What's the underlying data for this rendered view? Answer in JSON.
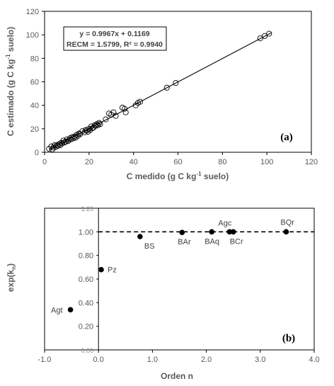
{
  "chart_data": [
    {
      "type": "scatter",
      "panel_label": "(a)",
      "xlabel": "C medido (g C kg-1 suelo)",
      "ylabel": "C estimado (g C kg-1 suelo)",
      "xlim": [
        0,
        120
      ],
      "ylim": [
        0,
        120
      ],
      "xticks": [
        "0",
        "20",
        "40",
        "60",
        "80",
        "100",
        "120"
      ],
      "yticks": [
        "0",
        "20",
        "40",
        "60",
        "80",
        "100",
        "120"
      ],
      "grid": false,
      "annotation": {
        "line1": "y = 0.9967x + 0.1169",
        "line2": "RECM = 1.5799, R² = 0.9940"
      },
      "regression": {
        "slope": 0.9967,
        "intercept": 0.1169
      },
      "points": [
        [
          2,
          3
        ],
        [
          3,
          5
        ],
        [
          3.5,
          2.5
        ],
        [
          4,
          4
        ],
        [
          4.5,
          6
        ],
        [
          5,
          4.5
        ],
        [
          5.5,
          6
        ],
        [
          6,
          5.5
        ],
        [
          6.5,
          7
        ],
        [
          7,
          6
        ],
        [
          7.5,
          8
        ],
        [
          8,
          7.5
        ],
        [
          8.5,
          10
        ],
        [
          9,
          8.5
        ],
        [
          9.5,
          9
        ],
        [
          10,
          11
        ],
        [
          10.5,
          9.5
        ],
        [
          11,
          10.5
        ],
        [
          11.5,
          12
        ],
        [
          12,
          11
        ],
        [
          12.5,
          13
        ],
        [
          13,
          12
        ],
        [
          13.5,
          13.5
        ],
        [
          14,
          12.5
        ],
        [
          14.5,
          15
        ],
        [
          15,
          14
        ],
        [
          15.5,
          16
        ],
        [
          16,
          15.5
        ],
        [
          17,
          18
        ],
        [
          18,
          17
        ],
        [
          18.5,
          19
        ],
        [
          19,
          18.5
        ],
        [
          19.5,
          17.5
        ],
        [
          20,
          20
        ],
        [
          20.5,
          19
        ],
        [
          21,
          22
        ],
        [
          21.5,
          20.5
        ],
        [
          22,
          21
        ],
        [
          22.5,
          23
        ],
        [
          23,
          22.5
        ],
        [
          23.5,
          24
        ],
        [
          24,
          23
        ],
        [
          24.5,
          25
        ],
        [
          25,
          24
        ],
        [
          27.5,
          28
        ],
        [
          29,
          33
        ],
        [
          30,
          32
        ],
        [
          31,
          34
        ],
        [
          32,
          31
        ],
        [
          35,
          38
        ],
        [
          36,
          37
        ],
        [
          36.5,
          34
        ],
        [
          41,
          40
        ],
        [
          42,
          42
        ],
        [
          43,
          43
        ],
        [
          55,
          55
        ],
        [
          59,
          59
        ],
        [
          97,
          97
        ],
        [
          99,
          99
        ],
        [
          101,
          101
        ]
      ]
    },
    {
      "type": "scatter",
      "panel_label": "(b)",
      "xlabel": "Orden n",
      "ylabel": "exp(kn)",
      "ylabel_main": "exp(k",
      "ylabel_sub": "n",
      "ylabel_end": ")",
      "xlim": [
        -1,
        4
      ],
      "ylim": [
        0,
        1.2
      ],
      "xticks": [
        "-1.0",
        "0.0",
        "1.0",
        "2.0",
        "3.0",
        "4.0"
      ],
      "yticks": [
        "0.00",
        "0.20",
        "0.40",
        "0.60",
        "0.80",
        "1.00",
        "1.20"
      ],
      "reference_line": 1.0,
      "grid": false,
      "points": [
        {
          "label": "Agt",
          "x": -0.52,
          "y": 0.34
        },
        {
          "label": "Pz",
          "x": 0.05,
          "y": 0.68
        },
        {
          "label": "BS",
          "x": 0.77,
          "y": 0.96
        },
        {
          "label": "BAr",
          "x": 1.55,
          "y": 0.995
        },
        {
          "label": "BAq",
          "x": 2.1,
          "y": 1.0
        },
        {
          "label": "Agc",
          "x": 2.43,
          "y": 1.0
        },
        {
          "label": "BCr",
          "x": 2.5,
          "y": 1.0
        },
        {
          "label": "BQr",
          "x": 3.48,
          "y": 1.0
        }
      ]
    }
  ]
}
